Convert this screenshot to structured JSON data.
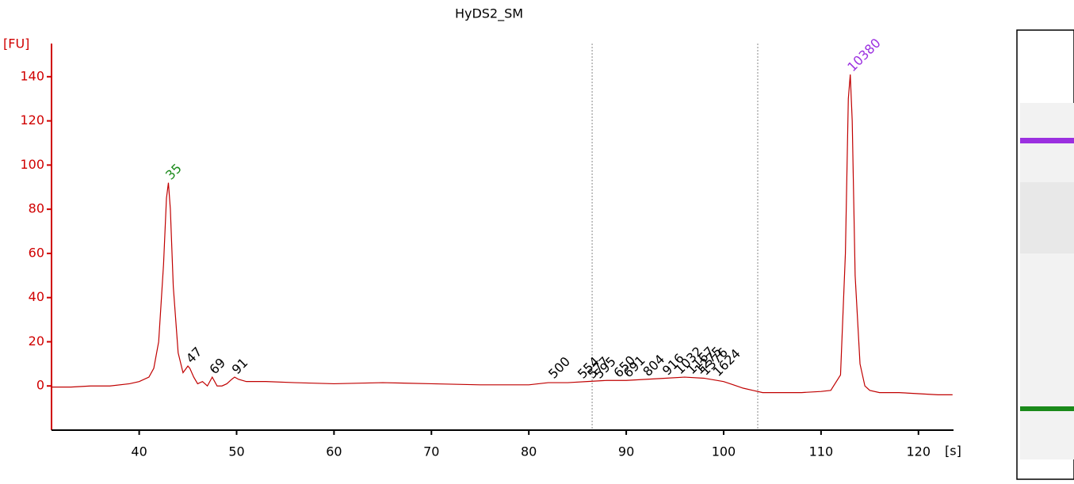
{
  "chart_data": {
    "type": "line",
    "title": "HyDS2_SM",
    "y_label": "[FU]",
    "x_label": "[s]",
    "xlim": [
      31,
      123.6
    ],
    "ylim": [
      -20,
      155
    ],
    "xticks": [
      40,
      50,
      60,
      70,
      80,
      90,
      100,
      110,
      120
    ],
    "yticks": [
      0,
      20,
      40,
      60,
      80,
      100,
      120,
      140
    ],
    "series": [
      {
        "color": "#c00000",
        "x": [
          31,
          33,
          35,
          37,
          39,
          40,
          41,
          41.5,
          42,
          42.5,
          42.8,
          43,
          43.2,
          43.5,
          44,
          44.5,
          45,
          45.2,
          45.6,
          46,
          46.5,
          47,
          47.5,
          48,
          48.5,
          49,
          49.5,
          49.8,
          50.2,
          51,
          53,
          56,
          60,
          65,
          70,
          75,
          80,
          82,
          84,
          86,
          88,
          90,
          92,
          94,
          96,
          98,
          100,
          101,
          102,
          103,
          104,
          106,
          108,
          110,
          111,
          112,
          112.5,
          112.8,
          113,
          113.2,
          113.5,
          114,
          114.5,
          115,
          116,
          118,
          120,
          122,
          123.5
        ],
        "values": [
          -0.5,
          -0.5,
          0,
          0,
          1,
          2,
          4,
          8,
          20,
          55,
          85,
          92,
          80,
          45,
          15,
          6,
          9,
          8,
          4,
          1,
          2,
          0,
          4,
          0,
          0,
          1,
          3,
          4,
          3,
          2,
          2,
          1.5,
          1,
          1.5,
          1,
          0.5,
          0.5,
          1.5,
          1.5,
          2,
          2.5,
          2.5,
          3,
          3.5,
          4,
          3.5,
          2,
          0.5,
          -1,
          -2,
          -3,
          -3,
          -3,
          -2.5,
          -2,
          5,
          60,
          130,
          141,
          120,
          50,
          10,
          0,
          -2,
          -3,
          -3,
          -3.5,
          -4,
          -4
        ]
      }
    ],
    "peaks": [
      {
        "label": "35",
        "x": 43,
        "y": 92,
        "color": "#1a8a1a"
      },
      {
        "label": "47",
        "x": 45.1,
        "y": 9,
        "color": "#000000"
      },
      {
        "label": "69",
        "x": 47.5,
        "y": 4,
        "color": "#000000"
      },
      {
        "label": "91",
        "x": 49.8,
        "y": 4,
        "color": "#000000"
      },
      {
        "label": "500",
        "x": 82.3,
        "y": 2,
        "color": "#000000"
      },
      {
        "label": "554",
        "x": 85.3,
        "y": 2,
        "color": "#000000"
      },
      {
        "label": "577",
        "x": 86.3,
        "y": 2,
        "color": "#000000"
      },
      {
        "label": "595",
        "x": 87,
        "y": 2,
        "color": "#000000"
      },
      {
        "label": "650",
        "x": 89,
        "y": 2.5,
        "color": "#000000"
      },
      {
        "label": "691",
        "x": 90,
        "y": 2.5,
        "color": "#000000"
      },
      {
        "label": "804",
        "x": 92,
        "y": 3,
        "color": "#000000"
      },
      {
        "label": "916",
        "x": 94,
        "y": 3.5,
        "color": "#000000"
      },
      {
        "label": "1032",
        "x": 95.3,
        "y": 4,
        "color": "#000000"
      },
      {
        "label": "1167",
        "x": 96.5,
        "y": 4,
        "color": "#000000"
      },
      {
        "label": "1275",
        "x": 97.3,
        "y": 4,
        "color": "#000000"
      },
      {
        "label": "1376",
        "x": 97.9,
        "y": 3.5,
        "color": "#000000"
      },
      {
        "label": "1624",
        "x": 99.2,
        "y": 3,
        "color": "#000000"
      },
      {
        "label": "10380",
        "x": 113,
        "y": 141,
        "color": "#9b30e0"
      }
    ],
    "region_bounds": [
      86.5,
      103.5
    ]
  }
}
